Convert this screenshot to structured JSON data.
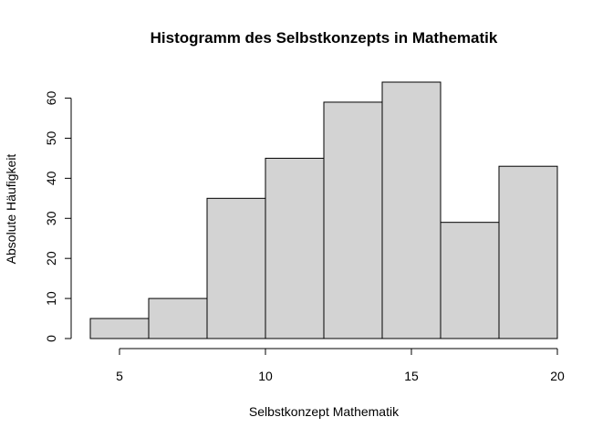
{
  "chart_data": {
    "type": "bar",
    "title": "Histogramm des Selbstkonzepts in Mathematik",
    "xlabel": "Selbstkonzept Mathematik",
    "ylabel": "Absolute Häufigkeit",
    "bins": [
      {
        "from": 4,
        "to": 6,
        "value": 5
      },
      {
        "from": 6,
        "to": 8,
        "value": 10
      },
      {
        "from": 8,
        "to": 10,
        "value": 35
      },
      {
        "from": 10,
        "to": 12,
        "value": 45
      },
      {
        "from": 12,
        "to": 14,
        "value": 59
      },
      {
        "from": 14,
        "to": 16,
        "value": 64
      },
      {
        "from": 16,
        "to": 18,
        "value": 29
      },
      {
        "from": 18,
        "to": 20,
        "value": 43
      }
    ],
    "xlim": [
      4,
      20
    ],
    "ylim": [
      0,
      64
    ],
    "x_ticks": [
      5,
      10,
      15,
      20
    ],
    "y_ticks": [
      0,
      10,
      20,
      30,
      40,
      50,
      60
    ],
    "bar_color": "#d3d3d3",
    "grid": false
  }
}
